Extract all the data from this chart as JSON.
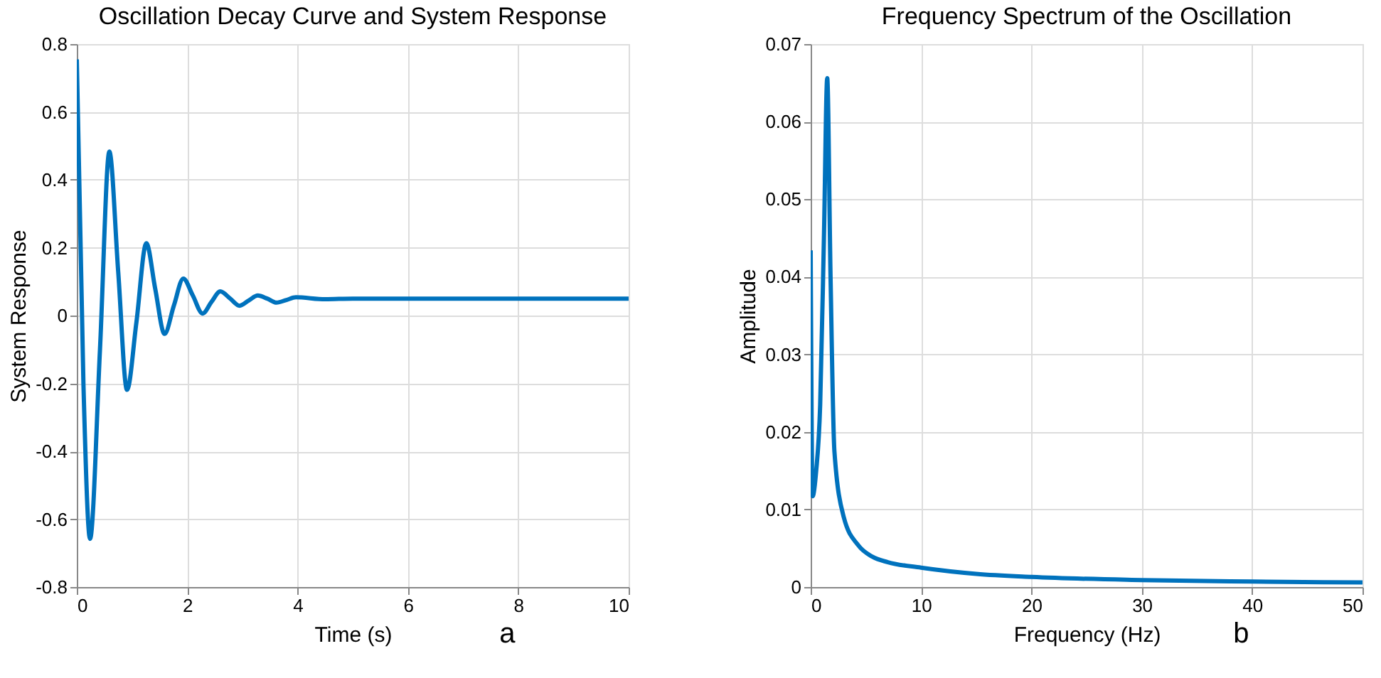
{
  "chart_data": [
    {
      "type": "line",
      "title": "Oscillation Decay Curve and System Response",
      "xlabel": "Time (s)",
      "ylabel": "System Response",
      "annotations": [
        "a"
      ],
      "x": [
        0,
        0.12,
        0.24,
        0.42,
        0.59,
        0.75,
        0.91,
        1.08,
        1.26,
        1.42,
        1.59,
        1.76,
        1.93,
        2.1,
        2.28,
        2.44,
        2.6,
        2.78,
        2.95,
        3.12,
        3.28,
        3.45,
        3.62,
        3.8,
        3.97,
        4.5,
        5,
        6,
        7,
        8,
        9,
        10
      ],
      "series": [
        {
          "color": "#0072bd",
          "values": [
            0.755,
            -0.2,
            -0.658,
            -0.1,
            0.483,
            0.13,
            -0.219,
            -0.02,
            0.213,
            0.08,
            -0.054,
            0.03,
            0.109,
            0.06,
            0.006,
            0.04,
            0.071,
            0.05,
            0.029,
            0.045,
            0.059,
            0.05,
            0.038,
            0.046,
            0.054,
            0.048,
            0.05,
            0.05,
            0.05,
            0.05,
            0.05,
            0.05
          ]
        }
      ],
      "xlim": [
        0,
        10
      ],
      "ylim": [
        -0.8,
        0.8
      ],
      "xticks": [
        0,
        2,
        4,
        6,
        8,
        10
      ],
      "yticks": [
        -0.8,
        -0.6,
        -0.4,
        -0.2,
        0,
        0.2,
        0.4,
        0.6,
        0.8
      ],
      "grid": true
    },
    {
      "type": "line",
      "title": "Frequency Spectrum of the Oscillation",
      "xlabel": "Frequency (Hz)",
      "ylabel": "Amplitude",
      "annotations": [
        "b"
      ],
      "x": [
        0,
        0.17,
        0.5,
        0.86,
        1.2,
        1.5,
        1.8,
        2.15,
        3,
        4.3,
        5.6,
        7,
        10,
        15,
        20,
        30,
        40,
        50
      ],
      "series": [
        {
          "color": "#0072bd",
          "values": [
            0.0434,
            0.0117,
            0.015,
            0.0235,
            0.045,
            0.0656,
            0.04,
            0.0175,
            0.009,
            0.0054,
            0.0039,
            0.0032,
            0.0025,
            0.0017,
            0.0013,
            0.0009,
            0.0007,
            0.0006
          ]
        }
      ],
      "xlim": [
        0,
        50
      ],
      "ylim": [
        0,
        0.07
      ],
      "xticks": [
        0,
        10,
        20,
        30,
        40,
        50
      ],
      "yticks": [
        0,
        0.01,
        0.02,
        0.03,
        0.04,
        0.05,
        0.06,
        0.07
      ],
      "grid": true
    }
  ]
}
